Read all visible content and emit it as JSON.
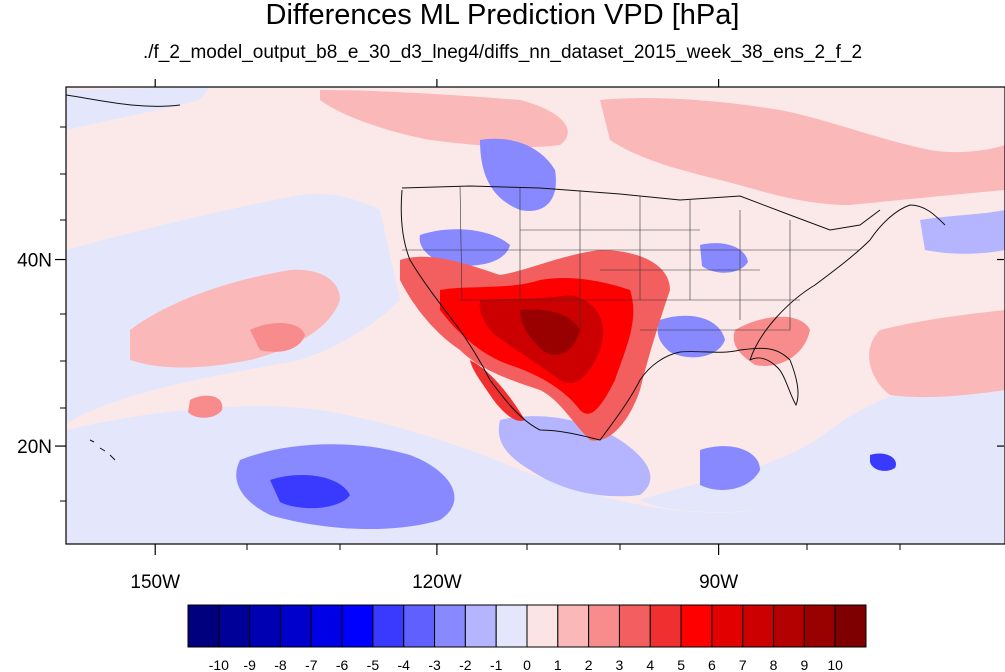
{
  "title": "Differences ML Prediction VPD [hPa]",
  "subtitle": "./f_2_model_output_b8_e_30_d3_lneg4/diffs_nn_dataset_2015_week_38_ens_2_f_2",
  "map": {
    "lon_range": [
      -159.5,
      -59.5
    ],
    "lat_range": [
      9.5,
      58.5
    ],
    "lon_ticks": [
      {
        "value": -150,
        "label": "150W"
      },
      {
        "value": -120,
        "label": "120W"
      },
      {
        "value": -90,
        "label": "90W"
      }
    ],
    "lat_ticks": [
      {
        "value": 40,
        "label": "40N"
      },
      {
        "value": 20,
        "label": "20N"
      }
    ],
    "colorbar": {
      "labels": [
        "-10",
        "-9",
        "-8",
        "-7",
        "-6",
        "-5",
        "-4",
        "-3",
        "-2",
        "-1",
        "0",
        "1",
        "2",
        "3",
        "4",
        "5",
        "6",
        "7",
        "8",
        "9",
        "10"
      ],
      "colors": [
        "#00007f",
        "#000099",
        "#0000b3",
        "#0000cc",
        "#0000e6",
        "#0000ff",
        "#3a3aff",
        "#6060ff",
        "#8888ff",
        "#b5b5ff",
        "#e4e6fb",
        "#fde4e4",
        "#fbb8b8",
        "#f88c8c",
        "#f35e5e",
        "#f03030",
        "#ff0000",
        "#e30000",
        "#cc0000",
        "#b30000",
        "#990000",
        "#7f0000"
      ]
    }
  }
}
